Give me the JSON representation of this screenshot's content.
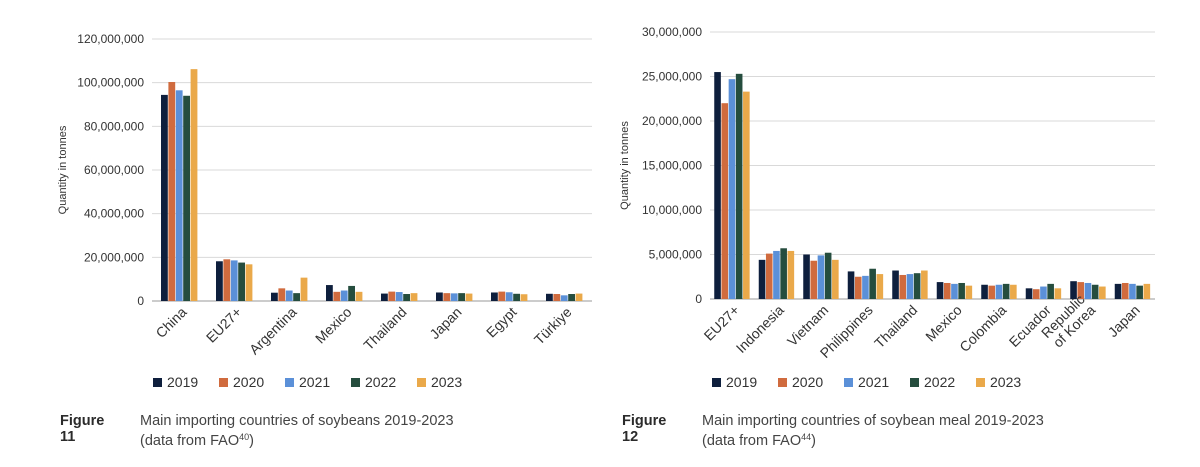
{
  "chart_data": [
    {
      "type": "bar",
      "title": "Main importing countries of soybeans 2019-2023",
      "xlabel": "",
      "ylabel": "Quantity in tonnes",
      "ylim": [
        0,
        120000000
      ],
      "yticks": [
        "0",
        "20,000,000",
        "40,000,000",
        "60,000,000",
        "80,000,000",
        "100,000,000",
        "120,000,000"
      ],
      "ytick_values": [
        0,
        20000000,
        40000000,
        60000000,
        80000000,
        100000000,
        120000000
      ],
      "grid": true,
      "legend": "bottom",
      "categories": [
        "China",
        "EU27+",
        "Argentina",
        "Mexico",
        "Thailand",
        "Japan",
        "Egypt",
        "Türkiye"
      ],
      "series": [
        {
          "name": "2019",
          "color": "#0e1f3d",
          "values": [
            94400000,
            18200000,
            3800000,
            7300000,
            3400000,
            3900000,
            3900000,
            3300000
          ]
        },
        {
          "name": "2020",
          "color": "#d06b3e",
          "values": [
            100300000,
            19100000,
            5800000,
            4200000,
            4300000,
            3600000,
            4300000,
            3200000
          ]
        },
        {
          "name": "2021",
          "color": "#5b90d8",
          "values": [
            96500000,
            18600000,
            4800000,
            4800000,
            4100000,
            3500000,
            4000000,
            2600000
          ]
        },
        {
          "name": "2022",
          "color": "#254d3e",
          "values": [
            94000000,
            17600000,
            3600000,
            6900000,
            3200000,
            3600000,
            3300000,
            3200000
          ]
        },
        {
          "name": "2023",
          "color": "#eaa94a",
          "values": [
            106200000,
            16800000,
            10700000,
            4200000,
            3600000,
            3400000,
            3100000,
            3400000
          ]
        }
      ]
    },
    {
      "type": "bar",
      "title": "Main importing countries of soybean meal 2019-2023",
      "xlabel": "",
      "ylabel": "Quantity in tonnes",
      "ylim": [
        0,
        30000000
      ],
      "yticks": [
        "0",
        "5,000,000",
        "10,000,000",
        "15,000,000",
        "20,000,000",
        "25,000,000",
        "30,000,000"
      ],
      "ytick_values": [
        0,
        5000000,
        10000000,
        15000000,
        20000000,
        25000000,
        30000000
      ],
      "grid": true,
      "legend": "bottom",
      "categories": [
        "EU27+",
        "Indonesia",
        "Vietnam",
        "Philippines",
        "Thailand",
        "Mexico",
        "Colombia",
        "Ecuador",
        "Republic of Korea",
        "Japan"
      ],
      "category_lines": [
        [
          "EU27+"
        ],
        [
          "Indonesia"
        ],
        [
          "Vietnam"
        ],
        [
          "Philippines"
        ],
        [
          "Thailand"
        ],
        [
          "Mexico"
        ],
        [
          "Colombia"
        ],
        [
          "Ecuador"
        ],
        [
          "Republic",
          "of Korea"
        ],
        [
          "Japan"
        ]
      ],
      "series": [
        {
          "name": "2019",
          "color": "#0e1f3d",
          "values": [
            25500000,
            4400000,
            5000000,
            3100000,
            3200000,
            1900000,
            1600000,
            1200000,
            2000000,
            1700000
          ]
        },
        {
          "name": "2020",
          "color": "#d06b3e",
          "values": [
            22000000,
            5100000,
            4300000,
            2500000,
            2700000,
            1800000,
            1500000,
            1100000,
            1900000,
            1800000
          ]
        },
        {
          "name": "2021",
          "color": "#5b90d8",
          "values": [
            24700000,
            5400000,
            4900000,
            2600000,
            2800000,
            1700000,
            1600000,
            1400000,
            1800000,
            1700000
          ]
        },
        {
          "name": "2022",
          "color": "#254d3e",
          "values": [
            25300000,
            5700000,
            5200000,
            3400000,
            2900000,
            1800000,
            1700000,
            1700000,
            1600000,
            1500000
          ]
        },
        {
          "name": "2023",
          "color": "#eaa94a",
          "values": [
            23300000,
            5400000,
            4400000,
            2800000,
            3200000,
            1500000,
            1600000,
            1200000,
            1400000,
            1700000
          ]
        }
      ]
    }
  ],
  "captions": [
    {
      "label": "Figure 11",
      "text": "Main importing countries of soybeans 2019-2023",
      "sub_prefix": "(data from FAO",
      "sup": "40",
      "sub_suffix": ")"
    },
    {
      "label": "Figure 12",
      "text": "Main importing countries of soybean meal 2019-2023",
      "sub_prefix": "(data from FAO",
      "sup": "44",
      "sub_suffix": ")"
    }
  ]
}
